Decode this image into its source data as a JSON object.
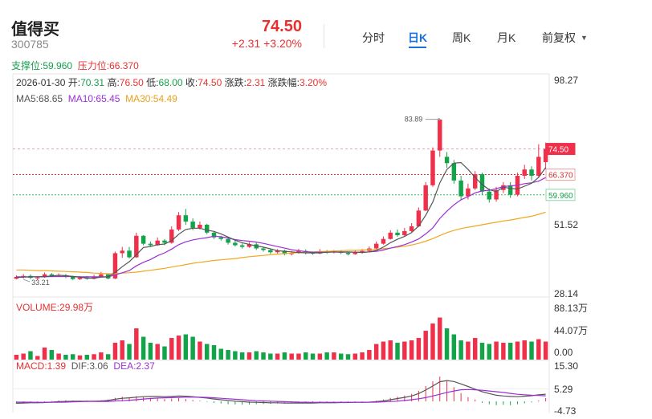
{
  "stock": {
    "name": "值得买",
    "code": "300785",
    "price": "74.50",
    "change": "+2.31",
    "change_pct": "+3.20%"
  },
  "tabs": [
    "分时",
    "日K",
    "周K",
    "月K",
    "前复权"
  ],
  "active_tab": "日K",
  "support": {
    "label": "支撑位:",
    "value": "59.960"
  },
  "pressure": {
    "label": "压力位:",
    "value": "66.370"
  },
  "info": {
    "date": "2026-01-30",
    "open_label": "开:",
    "open": "70.31",
    "high_label": "高:",
    "high": "76.50",
    "low_label": "低:",
    "low": "68.00",
    "close_label": "收:",
    "close": "74.50",
    "chg_label": "涨跌:",
    "chg": "2.31",
    "chgpct_label": "涨跌幅:",
    "chgpct": "3.20%"
  },
  "ma": {
    "ma5_label": "MA5:",
    "ma5": "68.65",
    "ma10_label": "MA10:",
    "ma10": "65.45",
    "ma30_label": "MA30:",
    "ma30": "54.49"
  },
  "volume": {
    "label": "VOLUME:",
    "value": "29.98万"
  },
  "macd": {
    "macd_label": "MACD:",
    "macd": "1.39",
    "dif_label": "DIF:",
    "dif": "3.06",
    "dea_label": "DEA:",
    "dea": "2.37"
  },
  "colors": {
    "up": "#f0304a",
    "down": "#13a44a",
    "ma5": "#555555",
    "ma10": "#9b2fd6",
    "ma30": "#f0a820",
    "accent": "#1a6fdf"
  },
  "chart_data": {
    "type": "candlestick",
    "price_axis": {
      "max": 98.27,
      "mid": 51.52,
      "min": 28.14,
      "labels": [
        "98.27",
        "51.52",
        "28.14"
      ]
    },
    "marks": {
      "high_label": "83.89",
      "high_value": 83.89,
      "low_label": "33.21",
      "low_value": 33.21,
      "last_label": "74.50"
    },
    "support_line": 59.96,
    "pressure_line": 66.37,
    "volume_axis": {
      "max": 88.13,
      "labels": [
        "88.13万",
        "44.07万",
        "0.00"
      ]
    },
    "macd_axis": {
      "max": 15.3,
      "min": -4.73,
      "labels": [
        "15.30",
        "5.29",
        "-4.73"
      ]
    },
    "candles": [
      [
        33.4,
        34.0,
        34.5,
        33.2
      ],
      [
        34.0,
        34.3,
        34.9,
        33.5
      ],
      [
        34.3,
        33.7,
        34.8,
        33.3
      ],
      [
        33.6,
        33.8,
        34.3,
        33.0
      ],
      [
        34.0,
        34.8,
        35.4,
        33.7
      ],
      [
        34.8,
        34.4,
        35.2,
        33.9
      ],
      [
        34.4,
        34.6,
        35.1,
        34.0
      ],
      [
        34.5,
        34.1,
        34.9,
        33.6
      ],
      [
        34.0,
        33.3,
        34.4,
        33.0
      ],
      [
        33.3,
        33.8,
        34.3,
        33.0
      ],
      [
        33.8,
        33.4,
        34.3,
        33.1
      ],
      [
        33.4,
        34.0,
        34.7,
        33.2
      ],
      [
        34.0,
        34.8,
        35.6,
        33.8
      ],
      [
        34.8,
        33.5,
        35.0,
        33.2
      ],
      [
        33.5,
        41.5,
        42.0,
        33.3
      ],
      [
        41.5,
        42.3,
        43.5,
        40.0
      ],
      [
        42.3,
        40.2,
        43.5,
        39.8
      ],
      [
        40.2,
        47.0,
        48.0,
        40.0
      ],
      [
        47.0,
        44.5,
        47.2,
        44.0
      ],
      [
        44.5,
        44.0,
        45.2,
        43.5
      ],
      [
        44.0,
        45.5,
        46.5,
        43.8
      ],
      [
        45.5,
        44.8,
        46.0,
        44.0
      ],
      [
        44.8,
        49.0,
        50.0,
        44.5
      ],
      [
        49.0,
        53.5,
        54.5,
        48.5
      ],
      [
        53.5,
        51.5,
        55.5,
        50.5
      ],
      [
        51.5,
        49.5,
        52.5,
        48.8
      ],
      [
        49.5,
        50.5,
        51.5,
        49.0
      ],
      [
        50.5,
        48.0,
        50.8,
        47.5
      ],
      [
        48.0,
        46.5,
        48.5,
        46.0
      ],
      [
        46.5,
        46.0,
        47.0,
        45.5
      ],
      [
        46.0,
        44.8,
        46.5,
        44.2
      ],
      [
        44.8,
        44.0,
        45.5,
        43.6
      ],
      [
        44.0,
        43.5,
        44.6,
        43.0
      ],
      [
        43.5,
        44.3,
        45.0,
        43.2
      ],
      [
        44.3,
        43.0,
        44.8,
        42.5
      ],
      [
        43.0,
        42.5,
        43.5,
        42.0
      ],
      [
        42.5,
        41.8,
        43.0,
        41.3
      ],
      [
        41.8,
        42.3,
        42.8,
        41.4
      ],
      [
        42.3,
        41.2,
        42.6,
        40.8
      ],
      [
        41.2,
        41.6,
        42.2,
        40.8
      ],
      [
        41.6,
        42.2,
        42.9,
        41.3
      ],
      [
        42.2,
        41.6,
        42.7,
        41.1
      ],
      [
        41.6,
        41.4,
        42.0,
        41.0
      ],
      [
        41.4,
        42.1,
        42.8,
        41.2
      ],
      [
        42.1,
        41.8,
        42.5,
        41.3
      ],
      [
        41.8,
        42.0,
        42.5,
        41.4
      ],
      [
        42.0,
        41.6,
        42.5,
        41.2
      ],
      [
        41.6,
        41.2,
        42.0,
        40.8
      ],
      [
        41.2,
        41.7,
        42.3,
        41.0
      ],
      [
        41.7,
        42.2,
        42.8,
        41.4
      ],
      [
        42.2,
        43.0,
        43.6,
        41.9
      ],
      [
        43.0,
        44.5,
        45.2,
        42.8
      ],
      [
        44.5,
        46.0,
        46.8,
        44.2
      ],
      [
        46.0,
        48.0,
        48.8,
        45.8
      ],
      [
        48.0,
        47.2,
        49.0,
        46.7
      ],
      [
        47.2,
        48.5,
        49.5,
        46.9
      ],
      [
        48.5,
        50.0,
        51.0,
        48.2
      ],
      [
        50.0,
        55.0,
        56.0,
        49.8
      ],
      [
        55.0,
        63.0,
        64.0,
        54.8
      ],
      [
        63.0,
        74.0,
        75.0,
        62.5
      ],
      [
        74.0,
        83.8,
        83.9,
        72.0
      ],
      [
        72.0,
        70.0,
        73.5,
        68.5
      ],
      [
        70.0,
        64.5,
        71.0,
        63.5
      ],
      [
        64.5,
        59.5,
        66.0,
        58.5
      ],
      [
        59.5,
        62.0,
        63.5,
        58.5
      ],
      [
        62.0,
        66.5,
        67.5,
        61.5
      ],
      [
        66.5,
        61.0,
        67.0,
        60.0
      ],
      [
        61.0,
        58.5,
        62.0,
        57.5
      ],
      [
        58.5,
        61.5,
        62.5,
        57.8
      ],
      [
        61.5,
        63.0,
        64.0,
        60.5
      ],
      [
        63.0,
        60.0,
        64.0,
        59.0
      ],
      [
        60.0,
        66.0,
        67.0,
        59.5
      ],
      [
        66.0,
        68.0,
        69.5,
        65.0
      ],
      [
        68.0,
        66.0,
        69.0,
        64.5
      ],
      [
        66.0,
        72.0,
        76.0,
        65.5
      ],
      [
        70.31,
        74.5,
        76.5,
        68.0
      ]
    ],
    "ma5": [
      33.8,
      33.9,
      34.0,
      34.0,
      34.1,
      34.3,
      34.5,
      34.4,
      34.1,
      33.9,
      33.6,
      33.6,
      33.9,
      34.0,
      35.4,
      37.2,
      38.8,
      41.0,
      43.3,
      43.6,
      44.2,
      44.4,
      45.5,
      47.5,
      49.0,
      49.4,
      49.4,
      48.8,
      48.4,
      47.6,
      46.6,
      45.6,
      44.8,
      44.3,
      43.8,
      43.4,
      42.9,
      42.3,
      42.1,
      41.9,
      41.7,
      41.6,
      41.6,
      41.6,
      41.8,
      41.9,
      41.9,
      41.9,
      41.8,
      41.7,
      41.9,
      42.4,
      43.4,
      44.8,
      45.9,
      46.8,
      48.0,
      50.1,
      53.5,
      57.7,
      63.8,
      68.0,
      70.0,
      70.2,
      68.0,
      65.5,
      63.2,
      61.6,
      61.0,
      62.4,
      62.0,
      61.8,
      62.7,
      63.6,
      65.5,
      68.65
    ],
    "ma10": [
      34.0,
      34.0,
      34.0,
      34.0,
      34.0,
      34.1,
      34.1,
      34.1,
      34.1,
      34.0,
      34.0,
      34.0,
      34.0,
      34.0,
      34.6,
      35.3,
      36.0,
      37.5,
      38.6,
      39.5,
      40.7,
      41.6,
      42.8,
      44.2,
      45.1,
      45.7,
      46.1,
      46.4,
      46.9,
      46.7,
      46.3,
      45.8,
      45.5,
      45.3,
      45.0,
      44.6,
      44.1,
      43.6,
      43.1,
      42.6,
      42.3,
      42.0,
      41.8,
      41.8,
      41.8,
      41.8,
      41.8,
      41.8,
      41.8,
      41.8,
      41.9,
      42.1,
      42.5,
      43.1,
      43.6,
      44.2,
      45.0,
      46.0,
      47.6,
      49.5,
      52.5,
      54.8,
      56.8,
      58.4,
      59.4,
      60.6,
      61.2,
      61.4,
      61.9,
      62.6,
      62.8,
      63.0,
      63.5,
      63.8,
      64.3,
      65.45
    ],
    "ma30": [
      36.2,
      36.2,
      36.1,
      36.0,
      36.0,
      35.9,
      35.8,
      35.7,
      35.6,
      35.5,
      35.4,
      35.2,
      35.1,
      35.0,
      35.0,
      35.2,
      35.3,
      35.5,
      35.8,
      36.1,
      36.4,
      36.7,
      37.1,
      37.5,
      37.9,
      38.3,
      38.6,
      38.9,
      39.2,
      39.4,
      39.6,
      39.8,
      40.1,
      40.4,
      40.6,
      40.8,
      41.0,
      41.2,
      41.4,
      41.5,
      41.7,
      41.8,
      41.9,
      42.0,
      42.1,
      42.2,
      42.3,
      42.4,
      42.4,
      42.5,
      42.6,
      42.7,
      42.9,
      43.1,
      43.4,
      43.7,
      44.1,
      44.6,
      45.3,
      46.1,
      47.1,
      48.0,
      48.7,
      49.3,
      49.7,
      50.1,
      50.5,
      50.9,
      51.3,
      51.7,
      52.0,
      52.4,
      52.8,
      53.2,
      53.8,
      54.49
    ],
    "volume": [
      8,
      10,
      14,
      6,
      20,
      16,
      10,
      8,
      9,
      7,
      8,
      9,
      12,
      9,
      28,
      32,
      26,
      52,
      38,
      28,
      26,
      22,
      36,
      40,
      42,
      38,
      30,
      26,
      24,
      18,
      16,
      14,
      12,
      12,
      14,
      12,
      10,
      10,
      12,
      10,
      10,
      12,
      10,
      10,
      12,
      12,
      10,
      9,
      10,
      12,
      16,
      26,
      30,
      32,
      28,
      30,
      32,
      36,
      48,
      60,
      70,
      52,
      42,
      32,
      30,
      36,
      28,
      26,
      30,
      28,
      28,
      30,
      32,
      30,
      34,
      29.98
    ],
    "macd": [
      -1.0,
      -0.8,
      -0.5,
      -0.6,
      -0.3,
      0.2,
      0.4,
      0.5,
      0.4,
      0.3,
      0.4,
      0.3,
      0.5,
      0.8,
      1.5,
      2.0,
      1.8,
      2.2,
      1.8,
      1.5,
      1.2,
      1.0,
      1.2,
      1.5,
      1.0,
      0.6,
      0.3,
      -0.2,
      -0.6,
      -0.9,
      -1.2,
      -1.3,
      -1.4,
      -1.3,
      -1.2,
      -1.1,
      -1.0,
      -0.9,
      -0.8,
      -0.8,
      -0.7,
      -0.6,
      -0.5,
      -0.5,
      -0.4,
      -0.4,
      -0.3,
      -0.3,
      -0.2,
      -0.2,
      0.0,
      0.3,
      0.8,
      1.5,
      2.0,
      2.5,
      3.2,
      4.5,
      6.5,
      8.5,
      10.5,
      8.5,
      6.0,
      3.5,
      1.8,
      0.8,
      -0.6,
      -1.2,
      -1.6,
      -1.4,
      -1.6,
      -1.2,
      -0.8,
      -0.4,
      0.4,
      1.39
    ],
    "dif": [
      -0.8,
      -0.7,
      -0.6,
      -0.6,
      -0.5,
      -0.3,
      -0.1,
      0.0,
      0.1,
      0.1,
      0.1,
      0.1,
      0.2,
      0.4,
      0.9,
      1.3,
      1.5,
      1.8,
      2.0,
      2.1,
      2.1,
      2.0,
      2.1,
      2.3,
      2.2,
      2.0,
      1.7,
      1.4,
      1.0,
      0.7,
      0.4,
      0.1,
      -0.1,
      -0.3,
      -0.4,
      -0.5,
      -0.6,
      -0.6,
      -0.7,
      -0.7,
      -0.7,
      -0.7,
      -0.7,
      -0.6,
      -0.6,
      -0.6,
      -0.5,
      -0.5,
      -0.4,
      -0.4,
      -0.3,
      -0.1,
      0.2,
      0.7,
      1.2,
      1.7,
      2.3,
      3.3,
      4.8,
      6.5,
      8.3,
      8.8,
      8.4,
      7.4,
      6.3,
      5.2,
      4.1,
      3.3,
      2.6,
      2.3,
      2.1,
      2.0,
      2.2,
      2.4,
      2.8,
      3.06
    ],
    "dea": [
      -0.3,
      -0.3,
      -0.35,
      -0.4,
      -0.4,
      -0.4,
      -0.35,
      -0.3,
      -0.2,
      -0.1,
      -0.05,
      0.0,
      0.0,
      0.0,
      0.2,
      0.3,
      0.5,
      0.7,
      1.0,
      1.2,
      1.4,
      1.5,
      1.6,
      1.7,
      1.8,
      1.8,
      1.8,
      1.7,
      1.5,
      1.3,
      1.1,
      0.9,
      0.7,
      0.5,
      0.3,
      0.2,
      0.1,
      0.0,
      -0.1,
      -0.2,
      -0.3,
      -0.35,
      -0.4,
      -0.4,
      -0.4,
      -0.4,
      -0.4,
      -0.4,
      -0.4,
      -0.4,
      -0.35,
      -0.3,
      -0.2,
      -0.05,
      0.1,
      0.4,
      0.7,
      1.1,
      1.6,
      2.3,
      3.0,
      3.8,
      4.4,
      4.9,
      5.0,
      4.9,
      4.7,
      4.4,
      4.1,
      3.8,
      3.4,
      3.0,
      2.8,
      2.6,
      2.5,
      2.37
    ]
  }
}
